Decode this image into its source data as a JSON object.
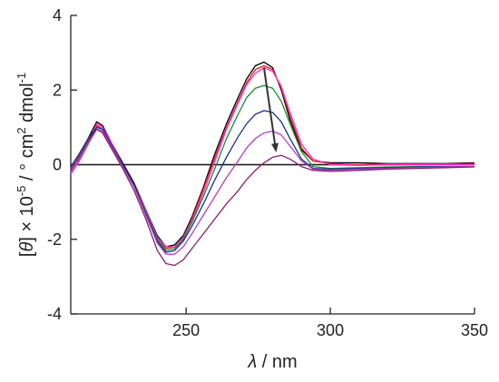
{
  "chart_data": {
    "type": "line",
    "title": "",
    "xlabel": {
      "symbol": "λ",
      "rest": " / nm"
    },
    "ylabel": {
      "part1": "[",
      "theta": "θ",
      "part2": "] × 10",
      "exp1": "-5",
      "part3": " / ° cm",
      "exp2": "2",
      "part4": " dmol",
      "exp3": "-1"
    },
    "xlim": [
      210,
      350
    ],
    "ylim": [
      -4,
      4
    ],
    "x_ticks": [
      250,
      300,
      350
    ],
    "y_ticks": [
      -4,
      -2,
      0,
      2,
      4
    ],
    "grid": false,
    "legend": "none",
    "zero_line": true,
    "series": [
      {
        "color": "#000000",
        "points": [
          [
            210,
            -0.05
          ],
          [
            213,
            0.15
          ],
          [
            216,
            0.7
          ],
          [
            219,
            1.15
          ],
          [
            221,
            1.05
          ],
          [
            224,
            0.6
          ],
          [
            228,
            0.05
          ],
          [
            232,
            -0.5
          ],
          [
            236,
            -1.2
          ],
          [
            240,
            -1.9
          ],
          [
            243,
            -2.2
          ],
          [
            246,
            -2.15
          ],
          [
            249,
            -1.9
          ],
          [
            252,
            -1.4
          ],
          [
            256,
            -0.6
          ],
          [
            260,
            0.3
          ],
          [
            264,
            1.1
          ],
          [
            268,
            1.8
          ],
          [
            271,
            2.3
          ],
          [
            274,
            2.65
          ],
          [
            277,
            2.75
          ],
          [
            280,
            2.6
          ],
          [
            283,
            2.0
          ],
          [
            286,
            1.2
          ],
          [
            290,
            0.4
          ],
          [
            294,
            0.1
          ],
          [
            300,
            0.05
          ],
          [
            310,
            0.05
          ],
          [
            320,
            0.03
          ],
          [
            330,
            0.03
          ],
          [
            340,
            0.03
          ],
          [
            350,
            0.05
          ]
        ]
      },
      {
        "color": "#e0201c",
        "points": [
          [
            210,
            -0.1
          ],
          [
            213,
            0.2
          ],
          [
            216,
            0.6
          ],
          [
            219,
            1.05
          ],
          [
            221,
            0.95
          ],
          [
            224,
            0.6
          ],
          [
            228,
            0.0
          ],
          [
            232,
            -0.55
          ],
          [
            236,
            -1.25
          ],
          [
            240,
            -1.95
          ],
          [
            243,
            -2.25
          ],
          [
            246,
            -2.2
          ],
          [
            249,
            -1.95
          ],
          [
            252,
            -1.45
          ],
          [
            256,
            -0.65
          ],
          [
            260,
            0.2
          ],
          [
            264,
            1.0
          ],
          [
            268,
            1.7
          ],
          [
            271,
            2.2
          ],
          [
            274,
            2.55
          ],
          [
            277,
            2.65
          ],
          [
            280,
            2.55
          ],
          [
            283,
            2.05
          ],
          [
            286,
            1.3
          ],
          [
            290,
            0.45
          ],
          [
            294,
            0.1
          ],
          [
            300,
            0.03
          ],
          [
            310,
            0.0
          ],
          [
            320,
            0.02
          ],
          [
            330,
            0.02
          ],
          [
            340,
            0.02
          ],
          [
            350,
            0.03
          ]
        ]
      },
      {
        "color": "#ff2bd0",
        "points": [
          [
            210,
            -0.25
          ],
          [
            213,
            0.1
          ],
          [
            216,
            0.55
          ],
          [
            219,
            1.1
          ],
          [
            221,
            1.0
          ],
          [
            224,
            0.6
          ],
          [
            228,
            0.0
          ],
          [
            232,
            -0.55
          ],
          [
            236,
            -1.2
          ],
          [
            240,
            -1.95
          ],
          [
            243,
            -2.2
          ],
          [
            246,
            -2.2
          ],
          [
            249,
            -1.95
          ],
          [
            252,
            -1.5
          ],
          [
            256,
            -0.75
          ],
          [
            260,
            0.1
          ],
          [
            264,
            0.95
          ],
          [
            268,
            1.65
          ],
          [
            271,
            2.15
          ],
          [
            274,
            2.45
          ],
          [
            277,
            2.6
          ],
          [
            280,
            2.5
          ],
          [
            283,
            2.1
          ],
          [
            286,
            1.4
          ],
          [
            290,
            0.55
          ],
          [
            294,
            0.15
          ],
          [
            300,
            0.0
          ],
          [
            310,
            -0.02
          ],
          [
            320,
            0.0
          ],
          [
            330,
            0.0
          ],
          [
            340,
            0.0
          ],
          [
            350,
            0.0
          ]
        ]
      },
      {
        "color": "#1b8a2e",
        "points": [
          [
            210,
            -0.1
          ],
          [
            213,
            0.2
          ],
          [
            216,
            0.6
          ],
          [
            219,
            1.0
          ],
          [
            221,
            0.95
          ],
          [
            224,
            0.55
          ],
          [
            228,
            0.0
          ],
          [
            232,
            -0.55
          ],
          [
            236,
            -1.25
          ],
          [
            240,
            -2.0
          ],
          [
            243,
            -2.3
          ],
          [
            246,
            -2.25
          ],
          [
            249,
            -2.0
          ],
          [
            252,
            -1.55
          ],
          [
            256,
            -0.85
          ],
          [
            260,
            -0.1
          ],
          [
            264,
            0.7
          ],
          [
            268,
            1.35
          ],
          [
            271,
            1.8
          ],
          [
            274,
            2.05
          ],
          [
            277,
            2.12
          ],
          [
            280,
            2.05
          ],
          [
            283,
            1.7
          ],
          [
            286,
            1.1
          ],
          [
            290,
            0.35
          ],
          [
            294,
            -0.05
          ],
          [
            300,
            -0.1
          ],
          [
            310,
            -0.08
          ],
          [
            320,
            -0.06
          ],
          [
            330,
            -0.05
          ],
          [
            340,
            -0.05
          ],
          [
            350,
            -0.05
          ]
        ]
      },
      {
        "color": "#1a2f8c",
        "points": [
          [
            210,
            -0.05
          ],
          [
            213,
            0.3
          ],
          [
            216,
            0.7
          ],
          [
            219,
            1.0
          ],
          [
            221,
            0.95
          ],
          [
            224,
            0.55
          ],
          [
            228,
            0.0
          ],
          [
            232,
            -0.55
          ],
          [
            236,
            -1.3
          ],
          [
            240,
            -2.05
          ],
          [
            243,
            -2.35
          ],
          [
            246,
            -2.3
          ],
          [
            249,
            -2.05
          ],
          [
            252,
            -1.65
          ],
          [
            256,
            -1.05
          ],
          [
            260,
            -0.4
          ],
          [
            264,
            0.2
          ],
          [
            268,
            0.75
          ],
          [
            271,
            1.1
          ],
          [
            274,
            1.35
          ],
          [
            277,
            1.45
          ],
          [
            280,
            1.4
          ],
          [
            283,
            1.15
          ],
          [
            286,
            0.7
          ],
          [
            290,
            0.15
          ],
          [
            294,
            -0.1
          ],
          [
            300,
            -0.12
          ],
          [
            310,
            -0.1
          ],
          [
            320,
            -0.08
          ],
          [
            330,
            -0.06
          ],
          [
            340,
            -0.05
          ],
          [
            350,
            -0.05
          ]
        ]
      },
      {
        "color": "#b23fc4",
        "points": [
          [
            210,
            -0.2
          ],
          [
            213,
            0.15
          ],
          [
            216,
            0.55
          ],
          [
            219,
            0.95
          ],
          [
            221,
            0.9
          ],
          [
            224,
            0.5
          ],
          [
            228,
            -0.05
          ],
          [
            232,
            -0.6
          ],
          [
            236,
            -1.35
          ],
          [
            240,
            -2.1
          ],
          [
            243,
            -2.4
          ],
          [
            246,
            -2.4
          ],
          [
            249,
            -2.2
          ],
          [
            252,
            -1.85
          ],
          [
            256,
            -1.35
          ],
          [
            260,
            -0.85
          ],
          [
            264,
            -0.35
          ],
          [
            268,
            0.1
          ],
          [
            271,
            0.45
          ],
          [
            274,
            0.7
          ],
          [
            277,
            0.85
          ],
          [
            280,
            0.9
          ],
          [
            283,
            0.8
          ],
          [
            286,
            0.5
          ],
          [
            290,
            0.1
          ],
          [
            294,
            -0.12
          ],
          [
            300,
            -0.15
          ],
          [
            310,
            -0.12
          ],
          [
            320,
            -0.1
          ],
          [
            330,
            -0.08
          ],
          [
            340,
            -0.06
          ],
          [
            350,
            -0.05
          ]
        ]
      },
      {
        "color": "#8a1f6e",
        "points": [
          [
            210,
            -0.15
          ],
          [
            213,
            0.25
          ],
          [
            216,
            0.65
          ],
          [
            219,
            0.95
          ],
          [
            221,
            0.85
          ],
          [
            224,
            0.45
          ],
          [
            228,
            -0.1
          ],
          [
            232,
            -0.7
          ],
          [
            236,
            -1.45
          ],
          [
            240,
            -2.3
          ],
          [
            243,
            -2.65
          ],
          [
            246,
            -2.7
          ],
          [
            249,
            -2.55
          ],
          [
            252,
            -2.25
          ],
          [
            256,
            -1.85
          ],
          [
            260,
            -1.45
          ],
          [
            264,
            -1.05
          ],
          [
            268,
            -0.7
          ],
          [
            271,
            -0.4
          ],
          [
            274,
            -0.15
          ],
          [
            277,
            0.05
          ],
          [
            280,
            0.2
          ],
          [
            283,
            0.25
          ],
          [
            286,
            0.15
          ],
          [
            290,
            -0.05
          ],
          [
            294,
            -0.15
          ],
          [
            300,
            -0.18
          ],
          [
            310,
            -0.15
          ],
          [
            320,
            -0.12
          ],
          [
            330,
            -0.1
          ],
          [
            340,
            -0.08
          ],
          [
            350,
            -0.06
          ]
        ]
      }
    ],
    "annotation": {
      "type": "arrow",
      "from": [
        277,
        2.6
      ],
      "to": [
        281,
        0.45
      ],
      "color": "#333333"
    }
  }
}
